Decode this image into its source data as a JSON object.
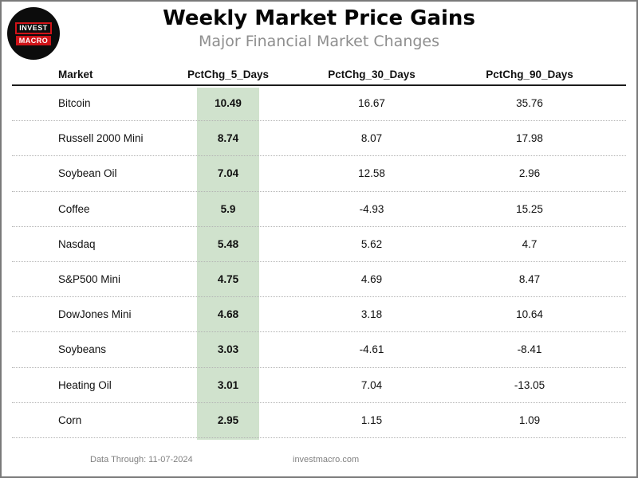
{
  "header": {
    "title": "Weekly Market Price Gains",
    "subtitle": "Major Financial Market Changes",
    "logo": {
      "line1": "INVEST",
      "line2": "MACRO",
      "circle_color": "#0c0c0c",
      "accent_color": "#d01318"
    }
  },
  "table": {
    "columns": [
      "Market",
      "PctChg_5_Days",
      "PctChg_30_Days",
      "PctChg_90_Days"
    ],
    "highlighted_column": "PctChg_5_Days"
  },
  "footer": {
    "data_through": "Data Through: 11-07-2024",
    "website": "investmacro.com"
  },
  "chart_data": {
    "type": "table",
    "title": "Weekly Market Price Gains",
    "subtitle": "Major Financial Market Changes",
    "columns": [
      "Market",
      "PctChg_5_Days",
      "PctChg_30_Days",
      "PctChg_90_Days"
    ],
    "rows": [
      [
        "Bitcoin",
        10.49,
        16.67,
        35.76
      ],
      [
        "Russell 2000 Mini",
        8.74,
        8.07,
        17.98
      ],
      [
        "Soybean Oil",
        7.04,
        12.58,
        2.96
      ],
      [
        "Coffee",
        5.9,
        -4.93,
        15.25
      ],
      [
        "Nasdaq",
        5.48,
        5.62,
        4.7
      ],
      [
        "S&P500 Mini",
        4.75,
        4.69,
        8.47
      ],
      [
        "DowJones Mini",
        4.68,
        3.18,
        10.64
      ],
      [
        "Soybeans",
        3.03,
        -4.61,
        -8.41
      ],
      [
        "Heating Oil",
        3.01,
        7.04,
        -13.05
      ],
      [
        "Corn",
        2.95,
        1.15,
        1.09
      ]
    ],
    "highlighted_column": "PctChg_5_Days",
    "highlight_color": "#d0e2cd",
    "layout": {
      "grid": "dotted-row-separators",
      "legend": "none"
    }
  }
}
